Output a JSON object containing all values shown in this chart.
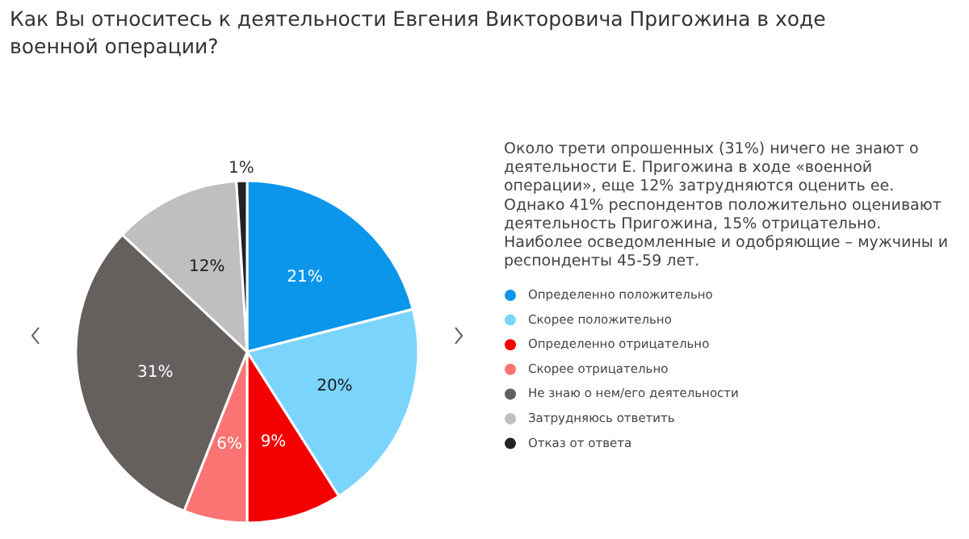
{
  "chart_data": {
    "type": "pie",
    "title": "Как Вы относитесь к деятельности Евгения Викторовича Пригожина в ходе военной операции?",
    "categories": [
      "Определенно положительно",
      "Скорее положительно",
      "Определенно отрицательно",
      "Скорее отрицательно",
      "Не знаю о нем/его деятельности",
      "Затрудняюсь ответить",
      "Отказ от ответа"
    ],
    "values": [
      21,
      20,
      9,
      6,
      31,
      12,
      1
    ],
    "colors": [
      "#0b96ec",
      "#7bd4fc",
      "#f40000",
      "#fb7372",
      "#655f5e",
      "#bfbfbf",
      "#222222"
    ],
    "value_labels": [
      "21%",
      "20%",
      "9%",
      "6%",
      "31%",
      "12%",
      "1%"
    ],
    "legend": "right",
    "annotations": [
      "Около трети опрошенных (31%) ничего не знают о деятельности Е. Пригожина в ходе «военной операции», еще 12% затрудняются оценить ее. Однако 41% респондентов положительно оценивают деятельность Пригожина, 15% отрицательно. Наиболее осведомленные и одобряющие – мужчины и респонденты 45-59 лет."
    ]
  }
}
